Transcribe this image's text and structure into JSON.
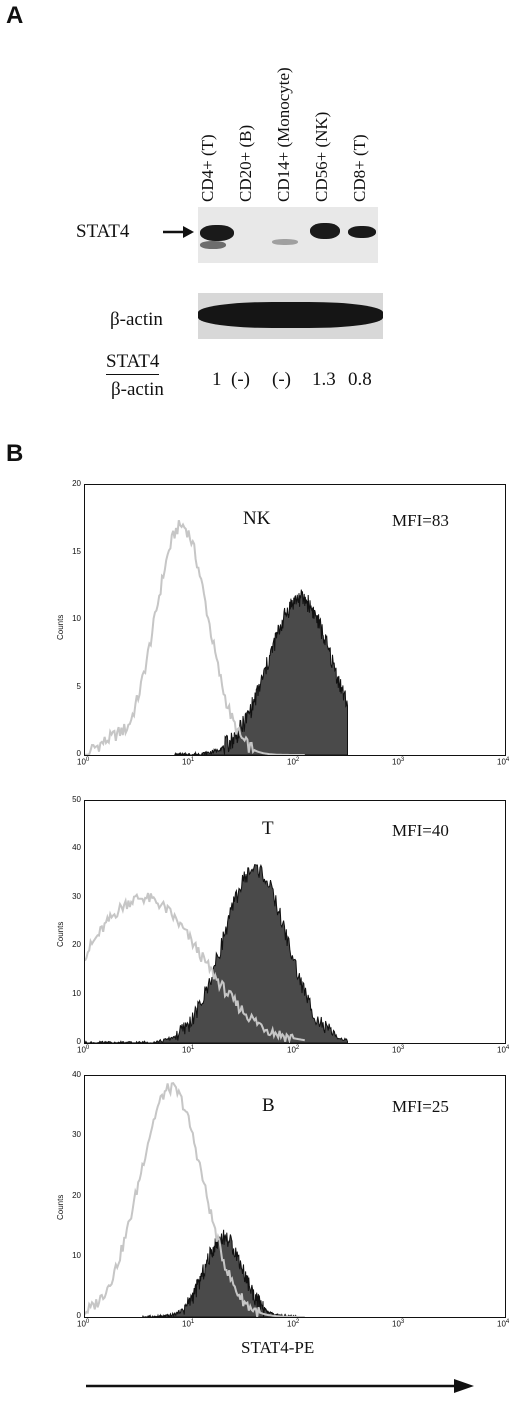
{
  "panelA": {
    "letter": "A",
    "lanes": [
      "CD4+ (T)",
      "CD20+ (B)",
      "CD14+ (Monocyte)",
      "CD56+ (NK)",
      "CD8+ (T)"
    ],
    "stat4_label": "STAT4",
    "actin_label": "β-actin",
    "ratio_numerator": "STAT4",
    "ratio_denominator": "β-actin",
    "ratios": [
      "1",
      "(-)",
      "(-)",
      "1.3",
      "0.8"
    ]
  },
  "panelB": {
    "letter": "B",
    "axis_label": "STAT4-PE",
    "counts_label": "Counts",
    "x_ticks": [
      "0",
      "1",
      "2",
      "3",
      "4"
    ],
    "histograms": [
      {
        "cell": "NK",
        "mfi": "MFI=83",
        "ymax": 20,
        "yticks": [
          "0",
          "5",
          "10",
          "15",
          "20"
        ]
      },
      {
        "cell": "T",
        "mfi": "MFI=40",
        "ymax": 50,
        "yticks": [
          "0",
          "10",
          "20",
          "30",
          "40",
          "50"
        ]
      },
      {
        "cell": "B",
        "mfi": "MFI=25",
        "ymax": 40,
        "yticks": [
          "0",
          "10",
          "20",
          "30",
          "40"
        ]
      }
    ]
  }
}
